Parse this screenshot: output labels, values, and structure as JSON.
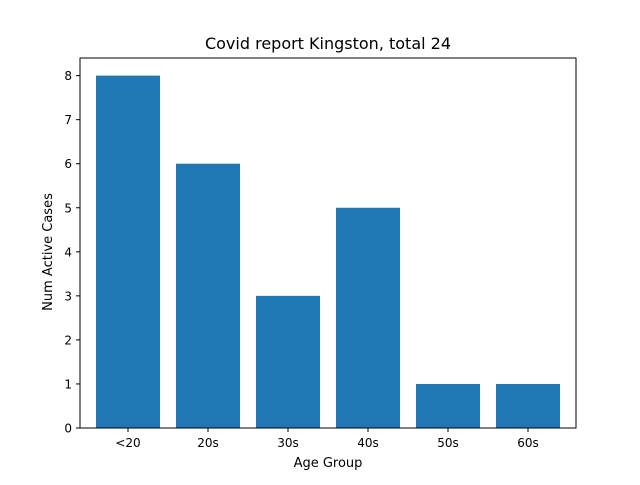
{
  "chart_data": {
    "type": "bar",
    "title": "Covid report Kingston, total 24",
    "xlabel": "Age Group",
    "ylabel": "Num Active Cases",
    "categories": [
      "<20",
      "20s",
      "30s",
      "40s",
      "50s",
      "60s"
    ],
    "values": [
      8,
      6,
      3,
      5,
      1,
      1
    ],
    "yticks": [
      0,
      1,
      2,
      3,
      4,
      5,
      6,
      7,
      8
    ],
    "ylim": [
      0,
      8.4
    ],
    "grid": false,
    "bar_color": "#1f77b4"
  }
}
